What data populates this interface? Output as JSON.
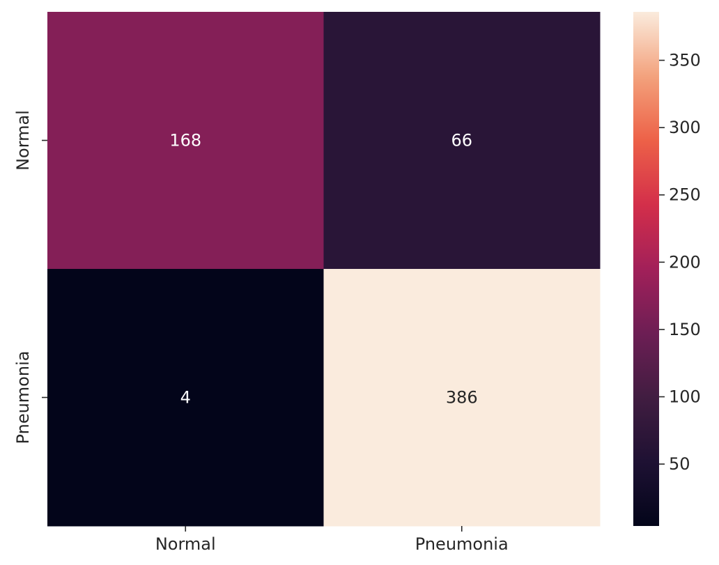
{
  "chart_data": {
    "type": "heatmap",
    "rows": [
      "Normal",
      "Pneumonia"
    ],
    "columns": [
      "Normal",
      "Pneumonia"
    ],
    "values": [
      [
        168,
        66
      ],
      [
        4,
        386
      ]
    ],
    "colormap": "rocket",
    "colorbar": {
      "min": 4,
      "max": 386,
      "ticks": [
        50,
        100,
        150,
        200,
        250,
        300,
        350
      ]
    },
    "title": "",
    "xlabel": "",
    "ylabel": ""
  }
}
